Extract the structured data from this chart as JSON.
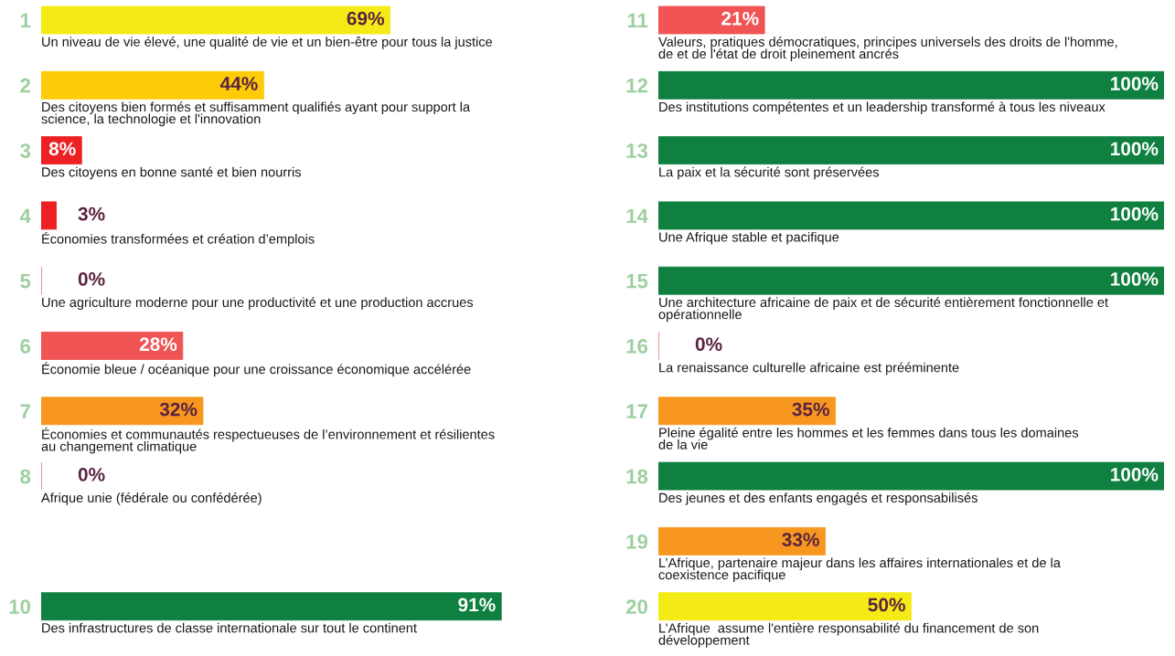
{
  "chart_data": [
    {
      "type": "bar",
      "orientation": "horizontal",
      "categories": [
        "1",
        "2",
        "3",
        "4",
        "5",
        "6",
        "7",
        "8",
        null,
        "10"
      ],
      "values": [
        69,
        44,
        8,
        3,
        0,
        28,
        32,
        0,
        null,
        91
      ],
      "colors": [
        "#f4ea16",
        "#fdcb08",
        "#ed2024",
        "#ed2024",
        "#f05455",
        "#f05455",
        "#f7971f",
        "#f05455",
        null,
        "#108040"
      ],
      "value_labels": [
        "69%",
        "44%",
        "8%",
        "3%",
        "0%",
        "28%",
        "32%",
        "0%",
        null,
        "91%"
      ],
      "tick_labels": "y",
      "annotations": [
        "Un niveau de vie élevé, une qualité de vie et un bien-être pour tous la justice",
        "Des citoyens bien formés et suffisamment qualifiés ayant pour support la\nscience, la technologie et l'innovation",
        "Des citoyens en bonne santé et bien nourris",
        "Économies transformées et création d’emplois",
        "Une agriculture moderne pour une productivité et une production accrues",
        "Économie bleue / océanique pour une croissance économique accélérée",
        "Économies et communautés respectueuses de l’environnement et résilientes\nau changement climatique",
        "Afrique unie (fédérale ou confédérée)",
        "Des infrastructures de classe internationale sur tout le continent"
      ]
    },
    {
      "type": "bar",
      "orientation": "horizontal",
      "categories": [
        "11",
        "12",
        "13",
        "14",
        "15",
        "16",
        "17",
        "18",
        "19",
        "20"
      ],
      "values": [
        21,
        100,
        100,
        100,
        100,
        0,
        35,
        100,
        33,
        50
      ],
      "colors": [
        "#f05455",
        "#108040",
        "#108040",
        "#108040",
        "#108040",
        "#f05455",
        "#f7971f",
        "#108040",
        "#f7971f",
        "#f4ea16"
      ],
      "value_labels": [
        "21%",
        "100%",
        "100%",
        "100%",
        "100%",
        "0%",
        "35%",
        "100%",
        "33%",
        "50%"
      ],
      "tick_labels": "y",
      "annotations": [
        "Valeurs, pratiques démocratiques, principes universels des droits de l'homme,\nde et de l'état de droit pleinement ancrés",
        "Des institutions compétentes et un leadership transformé à tous les niveaux",
        "La paix et la sécurité sont préservées",
        "Une Afrique stable et pacifique",
        "Une architecture africaine de paix et de sécurité entièrement fonctionnelle et\nopérationnelle",
        "La renaissance culturelle africaine est prééminente",
        "Pleine égalité entre les hommes et les femmes dans tous les domaines\nde la vie",
        "Des jeunes et des enfants engagés et responsabilisés",
        "L’Afrique, partenaire majeur dans les affaires internationales et de la\ncoexistence pacifique",
        "L’Afrique  assume l'entière responsabilité du financement de son\ndéveloppement"
      ]
    }
  ]
}
